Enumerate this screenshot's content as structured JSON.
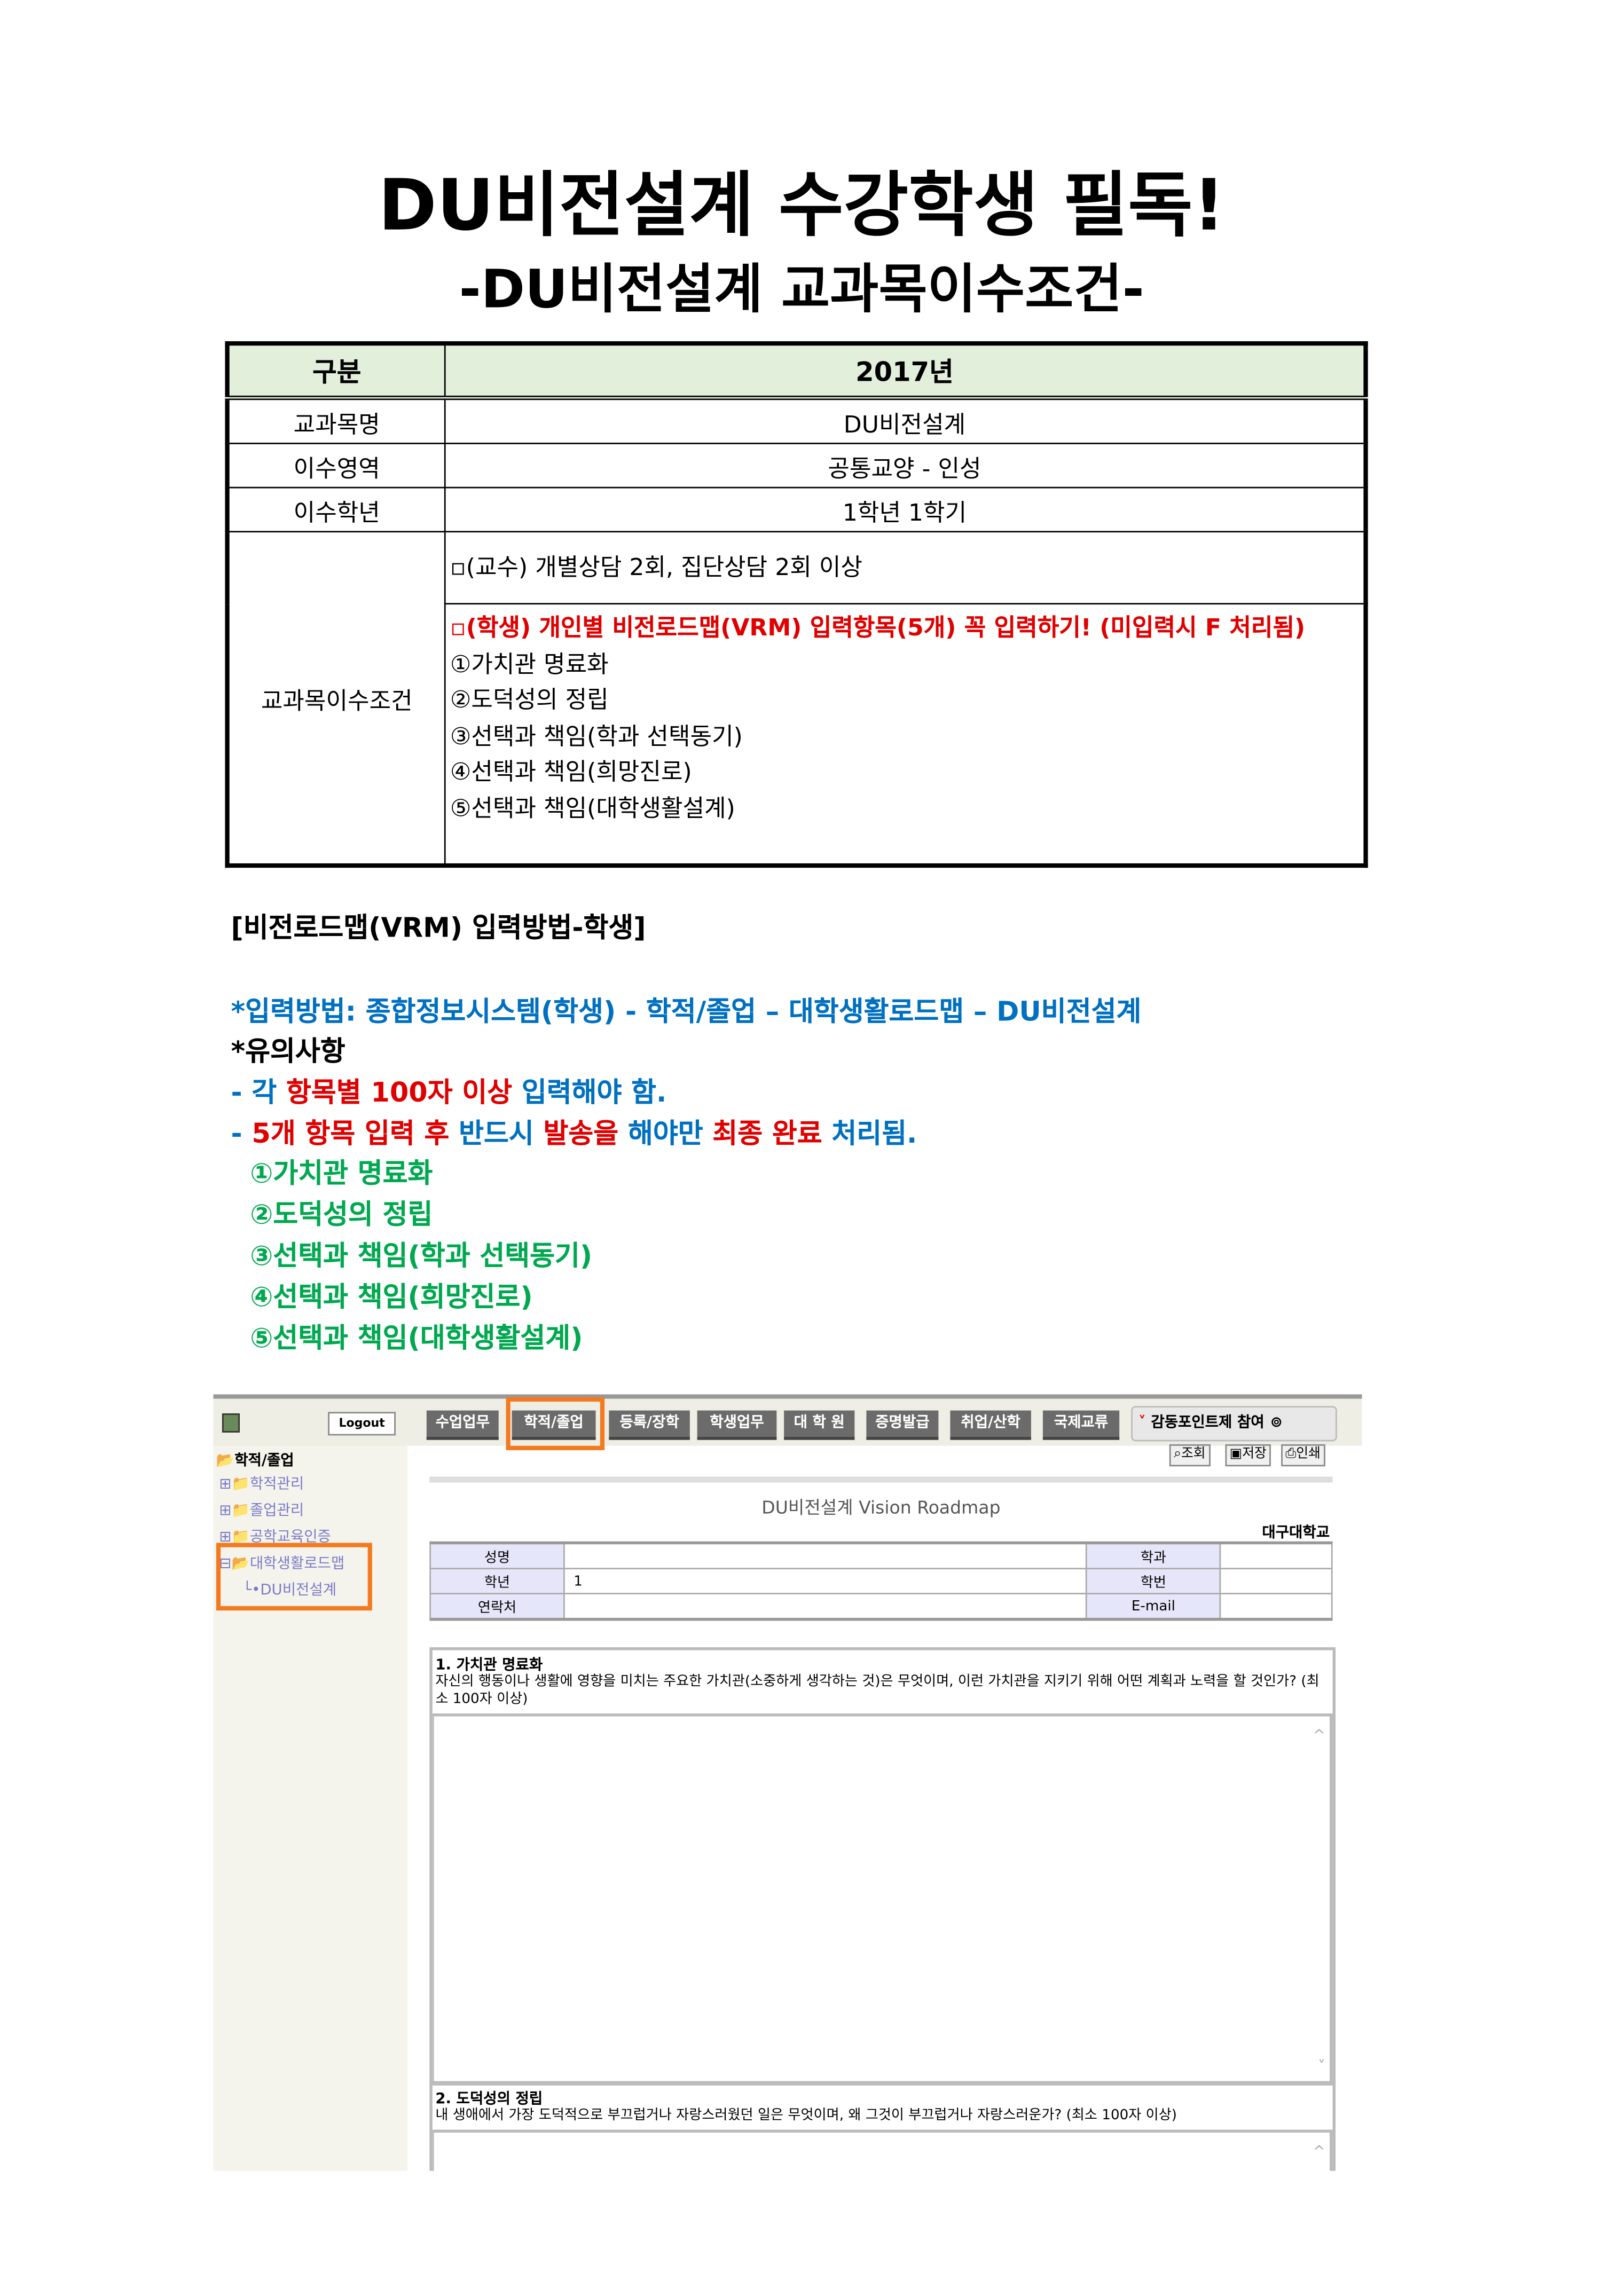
{
  "title": "DU비전설계 수강학생 필독!",
  "subtitle": "-DU비전설계 교과목이수조건-",
  "table": {
    "header": [
      "구분",
      "2017년"
    ],
    "rows": [
      {
        "label": "교과목명",
        "value": "DU비전설계"
      },
      {
        "label": "이수영역",
        "value": "공통교양 - 인성"
      },
      {
        "label": "이수학년",
        "value": "1학년 1학기"
      }
    ],
    "conditions_label": "교과목이수조건",
    "professor_condition": "▫(교수) 개별상담 2회, 집단상담 2회 이상",
    "student_condition": "▫(학생) 개인별 비전로드맵(VRM) 입력항목(5개) 꼭 입력하기! (미입력시 F 처리됨)",
    "items": [
      "①가치관 명료화",
      "②도덕성의 정립",
      "③선택과 책임(학과 선택동기)",
      "④선택과 책임(희망진로)",
      "⑤선택과 책임(대학생활설계)"
    ]
  },
  "section_title": "[비전로드맵(VRM) 입력방법-학생]",
  "input_method": "*입력방법: 종합정보시스템(학생) - 학적/졸업 – 대학생활로드맵 – DU비전설계",
  "notes_title": "*유의사항",
  "note1": [
    {
      "text": " - 각 ",
      "color": "blue"
    },
    {
      "text": "항목별 100자 이상 ",
      "color": "red"
    },
    {
      "text": "입력해야 함.",
      "color": "blue"
    }
  ],
  "note2": [
    {
      "text": " - ",
      "color": "blue"
    },
    {
      "text": "5개 항목 입력 후 ",
      "color": "red"
    },
    {
      "text": "반드시 ",
      "color": "blue"
    },
    {
      "text": "발송을 ",
      "color": "red"
    },
    {
      "text": "해야만 ",
      "color": "blue"
    },
    {
      "text": "최종 완료 ",
      "color": "red"
    },
    {
      "text": "처리됨.",
      "color": "blue"
    }
  ],
  "green_items": [
    "①가치관 명료화",
    "②도덕성의 정립",
    "③선택과 책임(학과 선택동기)",
    "④선택과 책임(희망진로)",
    "⑤선택과 책임(대학생활설계)"
  ],
  "colors": {
    "red": "#e00000",
    "blue": "#0070c0",
    "green": "#00a84f",
    "highlight": "#f47a20",
    "header_bg": "#e2efda"
  },
  "screenshot": {
    "logout": "Logout",
    "tabs": [
      "수업업무",
      "학적/졸업",
      "등록/장학",
      "학생업무",
      "대 학 원",
      "증명발급",
      "취업/산학",
      "국제교류"
    ],
    "event_button": "감동포인트제 참여",
    "actions": [
      "조회",
      "저장",
      "인쇄"
    ],
    "tree_root": "학적/졸업",
    "tree_items": [
      "학적관리",
      "졸업관리",
      "공학교육인증",
      "대학생활로드맵"
    ],
    "tree_leaf": "DU비전설계",
    "page_title": "DU비전설계 Vision Roadmap",
    "university": "대구대학교",
    "info": [
      {
        "k1": "성명",
        "v1": "",
        "k2": "학과",
        "v2": ""
      },
      {
        "k1": "학년",
        "v1": "1",
        "k2": "학번",
        "v2": ""
      },
      {
        "k1": "연락처",
        "v1": "",
        "k2": "E-mail",
        "v2": ""
      }
    ],
    "questions": [
      {
        "title": "1. 가치관 명료화",
        "desc": "자신의 행동이나 생활에 영향을 미치는 주요한 가치관(소중하게 생각하는 것)은 무엇이며, 이런 가치관을 지키기 위해 어떤 계획과 노력을 할 것인가? (최소 100자 이상)"
      },
      {
        "title": "2. 도덕성의 정립",
        "desc": "내 생애에서 가장 도덕적으로 부끄럽거나 자랑스러웠던 일은 무엇이며, 왜 그것이 부끄럽거나 자랑스러운가? (최소 100자 이상)"
      }
    ]
  }
}
